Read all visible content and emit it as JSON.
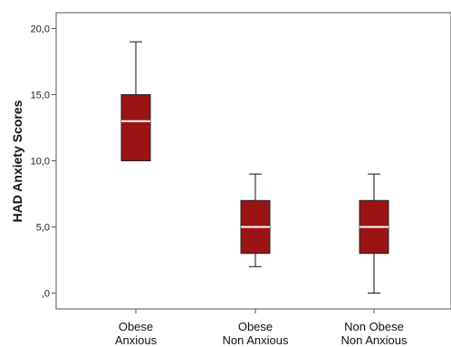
{
  "chart_data": {
    "type": "boxplot",
    "title": "",
    "ylabel": "HAD Anxiety Scores",
    "xlabel": "",
    "ylim": [
      -1.2,
      21.2
    ],
    "yticks": [
      0,
      5,
      10,
      15,
      20
    ],
    "yticklabels": [
      ",0",
      "5,0",
      "10,0",
      "15,0",
      "20,0"
    ],
    "grid": false,
    "box_color": "#9b1414",
    "median_color": "#ffffff",
    "categories": [
      {
        "line1": "Obese",
        "line2": "Anxious"
      },
      {
        "line1": "Obese",
        "line2": "Non Anxious"
      },
      {
        "line1": "Non Obese",
        "line2": "Non Anxious"
      }
    ],
    "boxes": [
      {
        "min": 10,
        "q1": 10,
        "median": 13,
        "q3": 15,
        "max": 19
      },
      {
        "min": 2,
        "q1": 3,
        "median": 5,
        "q3": 7,
        "max": 9
      },
      {
        "min": 0,
        "q1": 3,
        "median": 5,
        "q3": 7,
        "max": 9
      }
    ]
  }
}
